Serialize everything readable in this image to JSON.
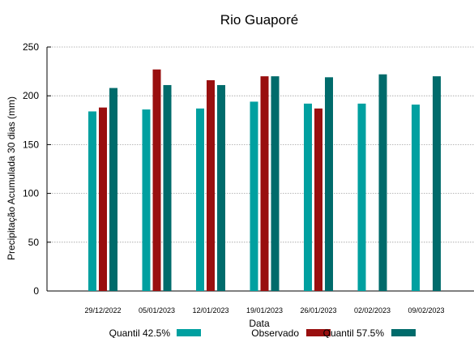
{
  "chart_data": {
    "type": "bar",
    "title": "Rio Guaporé",
    "xlabel": "Data",
    "ylabel": "Precipitação Acumulada 30 dias (mm)",
    "ylim": [
      0,
      250
    ],
    "yticks": [
      0,
      50,
      100,
      150,
      200,
      250
    ],
    "grid": true,
    "legend_position": "bottom",
    "categories": [
      "29/12/2022",
      "05/01/2023",
      "12/01/2023",
      "19/01/2023",
      "26/01/2023",
      "02/02/2023",
      "09/02/2023"
    ],
    "series": [
      {
        "name": "Quantil 42.5%",
        "color": "#00a0a0",
        "values": [
          184,
          186,
          187,
          194,
          192,
          192,
          191
        ]
      },
      {
        "name": "Observado",
        "color": "#990f0f",
        "values": [
          188,
          227,
          216,
          220,
          187,
          null,
          null
        ]
      },
      {
        "name": "Quantil 57.5%",
        "color": "#006b6b",
        "values": [
          208,
          211,
          211,
          220,
          219,
          222,
          220
        ]
      }
    ]
  }
}
